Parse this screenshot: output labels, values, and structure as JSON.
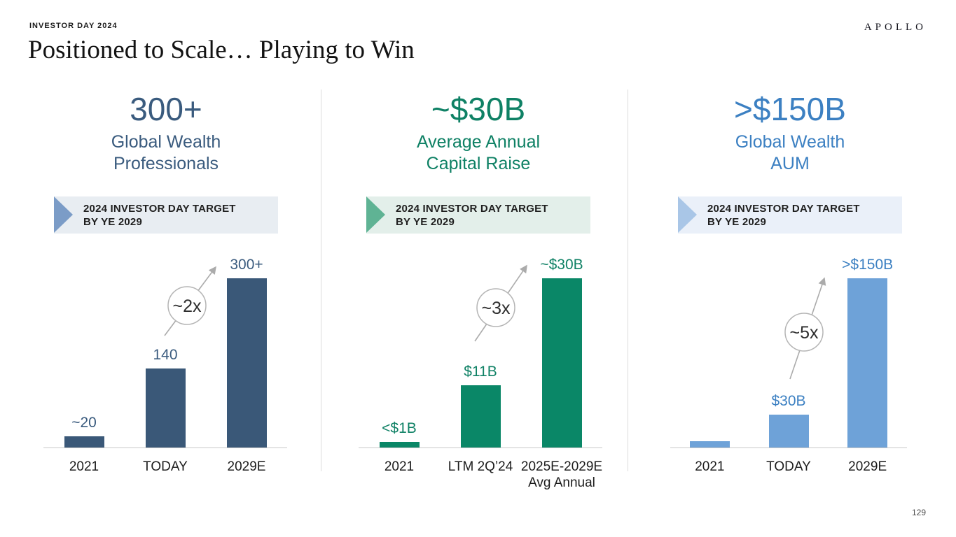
{
  "page": {
    "eyebrow": "INVESTOR DAY 2024",
    "title": "Positioned to Scale… Playing to Win",
    "logo": "APOLLO",
    "page_number": "129"
  },
  "banner": {
    "line1": "2024 INVESTOR DAY TARGET",
    "line2": "BY YE 2029"
  },
  "chart_data": [
    {
      "type": "bar",
      "headline": "300+",
      "subtitle_line1": "Global Wealth",
      "subtitle_line2": "Professionals",
      "annotation": "~2x",
      "categories": [
        "2021",
        "TODAY",
        "2029E"
      ],
      "values": [
        20,
        140,
        300
      ],
      "value_labels": [
        "~20",
        "140",
        "300+"
      ],
      "ylim": [
        0,
        300
      ],
      "legend": "none",
      "grid": false,
      "colors": {
        "accent": "#3a5b7e",
        "bar": "#3a5878",
        "banner_bg": "#e8edf2",
        "banner_arrow": "#7b9cc7"
      }
    },
    {
      "type": "bar",
      "headline": "~$30B",
      "subtitle_line1": "Average Annual",
      "subtitle_line2": "Capital Raise",
      "annotation": "~3x",
      "categories": [
        "2021",
        "LTM 2Q’24",
        "2025E-2029E\nAvg Annual"
      ],
      "values": [
        1,
        11,
        30
      ],
      "value_labels": [
        "<$1B",
        "$11B",
        "~$30B"
      ],
      "ylim": [
        0,
        30
      ],
      "legend": "none",
      "grid": false,
      "colors": {
        "accent": "#0f8165",
        "bar": "#0a8767",
        "banner_bg": "#e3efea",
        "banner_arrow": "#5fb394"
      }
    },
    {
      "type": "bar",
      "headline": ">$150B",
      "subtitle_line1": "Global Wealth",
      "subtitle_line2": "AUM",
      "annotation": "~5x",
      "categories": [
        "2021",
        "TODAY",
        "2029E"
      ],
      "values": [
        6,
        30,
        155
      ],
      "value_labels": [
        "",
        "$30B",
        ">$150B"
      ],
      "ylim": [
        0,
        155
      ],
      "legend": "none",
      "grid": false,
      "colors": {
        "accent": "#3c80c2",
        "bar": "#6ea2d8",
        "banner_bg": "#eaf0f9",
        "banner_arrow": "#a9c6e7"
      }
    }
  ]
}
